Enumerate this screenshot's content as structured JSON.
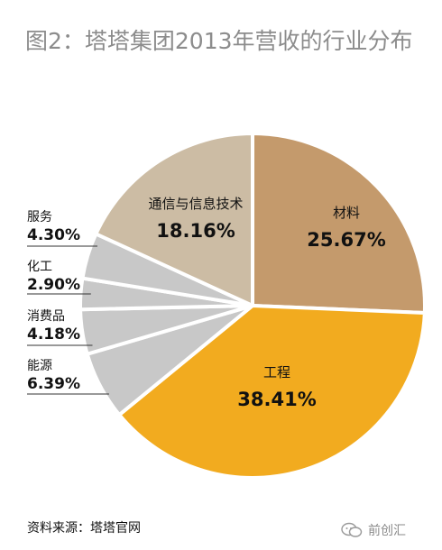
{
  "title": "图2：塔塔集团2013年营收的行业分布",
  "source": "资料来源：塔塔官网",
  "brand": "前创汇",
  "chart_data": {
    "type": "pie",
    "title": "图2：塔塔集团2013年营收的行业分布",
    "slices": [
      {
        "name": "材料",
        "value": 25.67,
        "label": "25.67%",
        "color": "#c49a6c",
        "label_pos": "inside"
      },
      {
        "name": "工程",
        "value": 38.41,
        "label": "38.41%",
        "color": "#f2ab1f",
        "label_pos": "inside"
      },
      {
        "name": "能源",
        "value": 6.39,
        "label": "6.39%",
        "color": "#c8c8c8",
        "label_pos": "outside"
      },
      {
        "name": "消费品",
        "value": 4.18,
        "label": "4.18%",
        "color": "#c8c8c8",
        "label_pos": "outside"
      },
      {
        "name": "化工",
        "value": 2.9,
        "label": "2.90%",
        "color": "#c8c8c8",
        "label_pos": "outside"
      },
      {
        "name": "服务",
        "value": 4.3,
        "label": "4.30%",
        "color": "#c8c8c8",
        "label_pos": "outside"
      },
      {
        "name": "通信与信息技术",
        "value": 18.16,
        "label": "18.16%",
        "color": "#ccbca4",
        "label_pos": "inside"
      }
    ]
  }
}
